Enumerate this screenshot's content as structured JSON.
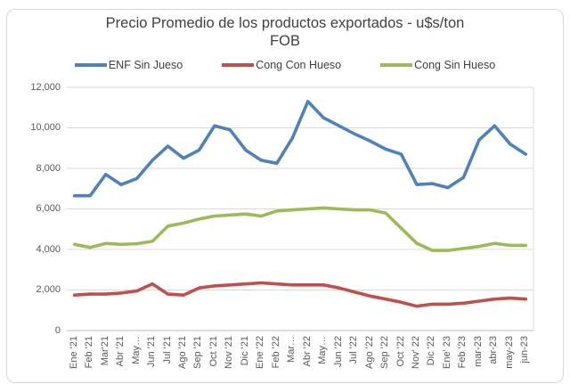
{
  "chart": {
    "title_line1": "Precio Promedio de los productos exportados - u$s/ton",
    "title_line2": "FOB"
  },
  "chart_data": {
    "type": "line",
    "title": "Precio Promedio de los productos exportados - u$s/ton FOB",
    "categories": [
      "Ene '21",
      "Feb '21",
      "Mar'21",
      "Abr '21",
      "May…",
      "Jun '21",
      "Jul '21",
      "Ago '21",
      "Sep '21",
      "Oct '21",
      "Nov '21",
      "Dic '21",
      "Ene '22",
      "Feb '22",
      "Mar…",
      "Abr '22",
      "May…",
      "Jun '22",
      "Jul '22",
      "Ago '22",
      "Sep '22",
      "Oct '22",
      "Nov' 22",
      "Dic '22",
      "Ene' 23",
      "Feb '23",
      "mar-23",
      "abr-23",
      "may-23",
      "jun-23"
    ],
    "series": [
      {
        "name": "ENF Sin Jueso",
        "color": "#4F81BD",
        "values": [
          6650,
          6650,
          7700,
          7200,
          7500,
          8400,
          9100,
          8500,
          8900,
          10100,
          9900,
          8900,
          8400,
          8250,
          9500,
          11300,
          10500,
          10100,
          9700,
          9350,
          8950,
          8700,
          7200,
          7250,
          7050,
          7550,
          9400,
          10100,
          9200,
          8700
        ]
      },
      {
        "name": "Cong Con Hueso",
        "color": "#C0504D",
        "values": [
          1750,
          1800,
          1800,
          1850,
          1950,
          2300,
          1800,
          1750,
          2100,
          2200,
          2250,
          2300,
          2350,
          2300,
          2250,
          2250,
          2250,
          2100,
          1900,
          1700,
          1550,
          1400,
          1200,
          1300,
          1300,
          1350,
          1450,
          1550,
          1600,
          1550
        ]
      },
      {
        "name": "Cong Sin Hueso",
        "color": "#9BBB59",
        "values": [
          4250,
          4100,
          4300,
          4250,
          4280,
          4400,
          5150,
          5300,
          5500,
          5650,
          5700,
          5750,
          5650,
          5900,
          5950,
          6000,
          6050,
          6000,
          5950,
          5950,
          5800,
          5050,
          4300,
          3950,
          3950,
          4050,
          4150,
          4300,
          4200,
          4200
        ]
      }
    ],
    "ylim": [
      0,
      12000
    ],
    "y_tick_step": 2000,
    "y_tick_labels": [
      "0",
      "2,000",
      "4,000",
      "6,000",
      "8,000",
      "10,000",
      "12,000"
    ],
    "grid": true,
    "legend_position": "top",
    "grid_color": "#d9d9d9",
    "axis_color": "#bfbfbf"
  }
}
